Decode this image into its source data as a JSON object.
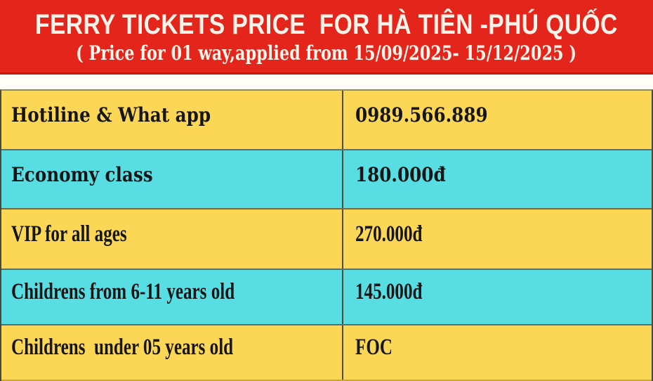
{
  "header": {
    "title": "FERRY TICKETS PRICE  FOR HÀ TIÊN -PHÚ QUỐC",
    "subtitle": "( Price for 01 way,applied from 15/09/2025- 15/12/2025 )"
  },
  "table": {
    "rows": [
      {
        "label": "Hotiline & What app",
        "value": "0989.566.889"
      },
      {
        "label": "Economy class",
        "value": "180.000đ"
      },
      {
        "label": "VIP for all ages",
        "value": "270.000đ"
      },
      {
        "label": "Childrens from 6-11 years old",
        "value": "145.000đ"
      },
      {
        "label": "Childrens  under 05 years old",
        "value": "FOC"
      }
    ]
  },
  "colors": {
    "banner_red": "#e3251b",
    "banner_text": "#f8f3e9",
    "row_yellow": "#fcd755",
    "row_cyan": "#58dde3",
    "text_dark": "#161616",
    "rule_line": "#6a6a52"
  }
}
